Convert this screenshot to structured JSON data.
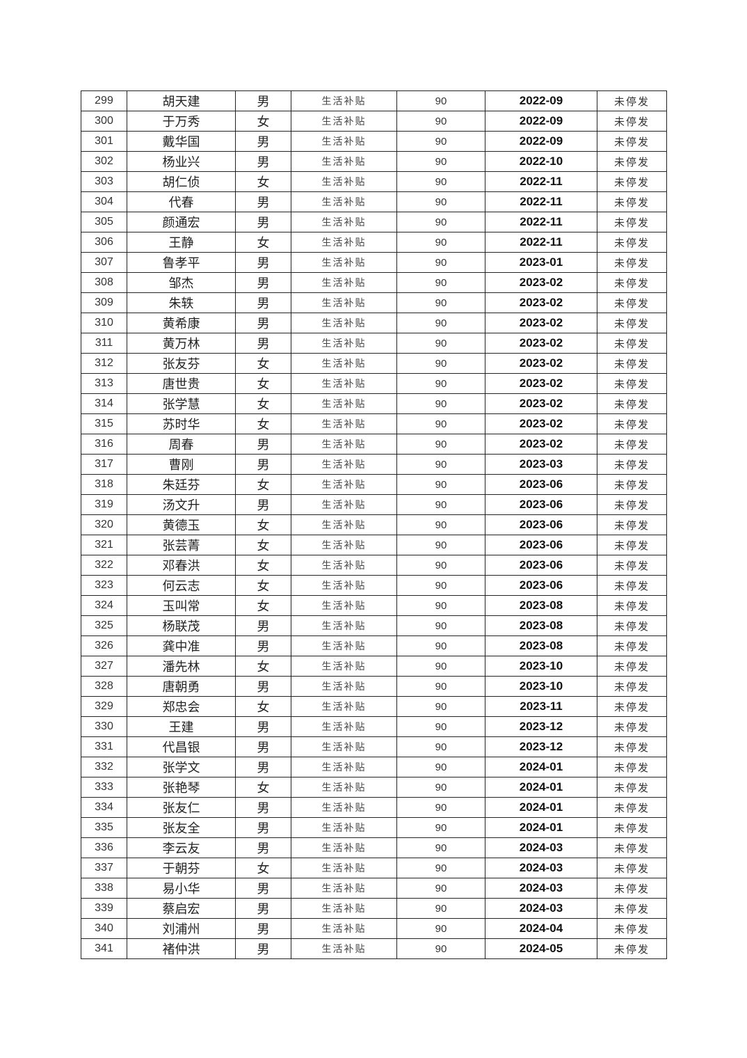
{
  "table": {
    "rows": [
      [
        "299",
        "胡天建",
        "男",
        "生活补贴",
        "90",
        "2022-09",
        "未停发"
      ],
      [
        "300",
        "于万秀",
        "女",
        "生活补贴",
        "90",
        "2022-09",
        "未停发"
      ],
      [
        "301",
        "戴华国",
        "男",
        "生活补贴",
        "90",
        "2022-09",
        "未停发"
      ],
      [
        "302",
        "杨业兴",
        "男",
        "生活补贴",
        "90",
        "2022-10",
        "未停发"
      ],
      [
        "303",
        "胡仁侦",
        "女",
        "生活补贴",
        "90",
        "2022-11",
        "未停发"
      ],
      [
        "304",
        "代春",
        "男",
        "生活补贴",
        "90",
        "2022-11",
        "未停发"
      ],
      [
        "305",
        "颜通宏",
        "男",
        "生活补贴",
        "90",
        "2022-11",
        "未停发"
      ],
      [
        "306",
        "王静",
        "女",
        "生活补贴",
        "90",
        "2022-11",
        "未停发"
      ],
      [
        "307",
        "鲁孝平",
        "男",
        "生活补贴",
        "90",
        "2023-01",
        "未停发"
      ],
      [
        "308",
        "邹杰",
        "男",
        "生活补贴",
        "90",
        "2023-02",
        "未停发"
      ],
      [
        "309",
        "朱轶",
        "男",
        "生活补贴",
        "90",
        "2023-02",
        "未停发"
      ],
      [
        "310",
        "黄希康",
        "男",
        "生活补贴",
        "90",
        "2023-02",
        "未停发"
      ],
      [
        "311",
        "黄万林",
        "男",
        "生活补贴",
        "90",
        "2023-02",
        "未停发"
      ],
      [
        "312",
        "张友芬",
        "女",
        "生活补贴",
        "90",
        "2023-02",
        "未停发"
      ],
      [
        "313",
        "唐世贵",
        "女",
        "生活补贴",
        "90",
        "2023-02",
        "未停发"
      ],
      [
        "314",
        "张学慧",
        "女",
        "生活补贴",
        "90",
        "2023-02",
        "未停发"
      ],
      [
        "315",
        "苏时华",
        "女",
        "生活补贴",
        "90",
        "2023-02",
        "未停发"
      ],
      [
        "316",
        "周春",
        "男",
        "生活补贴",
        "90",
        "2023-02",
        "未停发"
      ],
      [
        "317",
        "曹刚",
        "男",
        "生活补贴",
        "90",
        "2023-03",
        "未停发"
      ],
      [
        "318",
        "朱廷芬",
        "女",
        "生活补贴",
        "90",
        "2023-06",
        "未停发"
      ],
      [
        "319",
        "汤文升",
        "男",
        "生活补贴",
        "90",
        "2023-06",
        "未停发"
      ],
      [
        "320",
        "黄德玉",
        "女",
        "生活补贴",
        "90",
        "2023-06",
        "未停发"
      ],
      [
        "321",
        "张芸菁",
        "女",
        "生活补贴",
        "90",
        "2023-06",
        "未停发"
      ],
      [
        "322",
        "邓春洪",
        "女",
        "生活补贴",
        "90",
        "2023-06",
        "未停发"
      ],
      [
        "323",
        "何云志",
        "女",
        "生活补贴",
        "90",
        "2023-06",
        "未停发"
      ],
      [
        "324",
        "玉叫常",
        "女",
        "生活补贴",
        "90",
        "2023-08",
        "未停发"
      ],
      [
        "325",
        "杨联茂",
        "男",
        "生活补贴",
        "90",
        "2023-08",
        "未停发"
      ],
      [
        "326",
        "龚中准",
        "男",
        "生活补贴",
        "90",
        "2023-08",
        "未停发"
      ],
      [
        "327",
        "潘先林",
        "女",
        "生活补贴",
        "90",
        "2023-10",
        "未停发"
      ],
      [
        "328",
        "唐朝勇",
        "男",
        "生活补贴",
        "90",
        "2023-10",
        "未停发"
      ],
      [
        "329",
        "郑忠会",
        "女",
        "生活补贴",
        "90",
        "2023-11",
        "未停发"
      ],
      [
        "330",
        "王建",
        "男",
        "生活补贴",
        "90",
        "2023-12",
        "未停发"
      ],
      [
        "331",
        "代昌银",
        "男",
        "生活补贴",
        "90",
        "2023-12",
        "未停发"
      ],
      [
        "332",
        "张学文",
        "男",
        "生活补贴",
        "90",
        "2024-01",
        "未停发"
      ],
      [
        "333",
        "张艳琴",
        "女",
        "生活补贴",
        "90",
        "2024-01",
        "未停发"
      ],
      [
        "334",
        "张友仁",
        "男",
        "生活补贴",
        "90",
        "2024-01",
        "未停发"
      ],
      [
        "335",
        "张友全",
        "男",
        "生活补贴",
        "90",
        "2024-01",
        "未停发"
      ],
      [
        "336",
        "李云友",
        "男",
        "生活补贴",
        "90",
        "2024-03",
        "未停发"
      ],
      [
        "337",
        "于朝芬",
        "女",
        "生活补贴",
        "90",
        "2024-03",
        "未停发"
      ],
      [
        "338",
        "易小华",
        "男",
        "生活补贴",
        "90",
        "2024-03",
        "未停发"
      ],
      [
        "339",
        "蔡启宏",
        "男",
        "生活补贴",
        "90",
        "2024-03",
        "未停发"
      ],
      [
        "340",
        "刘浦州",
        "男",
        "生活补贴",
        "90",
        "2024-04",
        "未停发"
      ],
      [
        "341",
        "褚仲洪",
        "男",
        "生活补贴",
        "90",
        "2024-05",
        "未停发"
      ]
    ]
  }
}
